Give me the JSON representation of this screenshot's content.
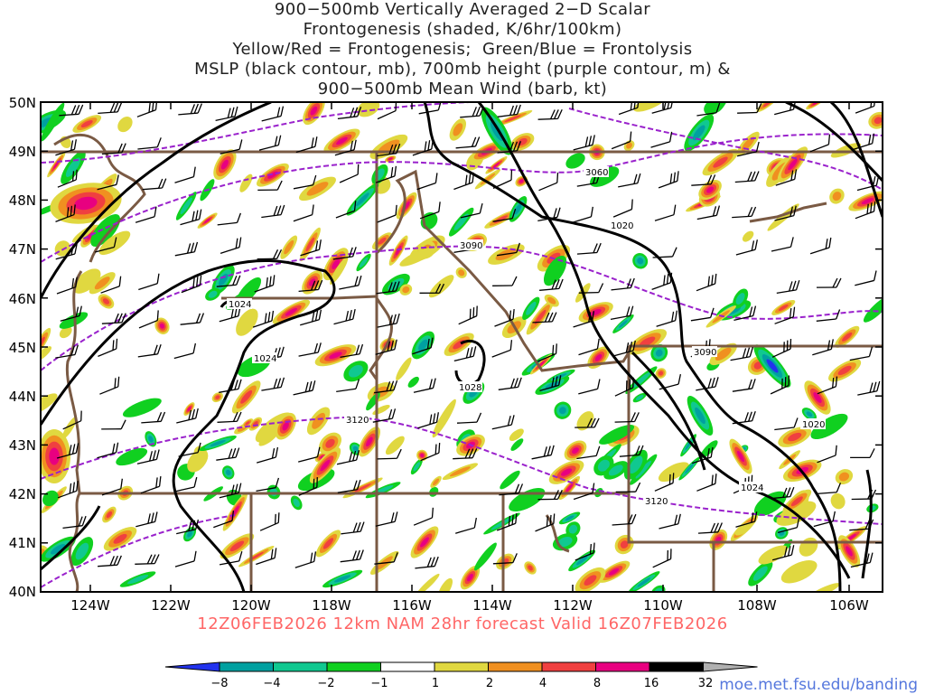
{
  "title_lines": [
    "900−500mb Vertically Averaged 2−D Scalar",
    "Frontogenesis (shaded, K/6hr/100km)",
    "Yellow/Red = Frontogenesis;  Green/Blue = Frontolysis",
    "MSLP (black contour, mb), 700mb height (purple contour, m) &",
    "900−500mb Mean Wind (barb, kt)"
  ],
  "lat_labels": [
    "50N",
    "49N",
    "48N",
    "47N",
    "46N",
    "45N",
    "44N",
    "43N",
    "42N",
    "41N",
    "40N"
  ],
  "lon_labels": [
    "124W",
    "122W",
    "120W",
    "118W",
    "116W",
    "114W",
    "112W",
    "110W",
    "108W",
    "106W"
  ],
  "mslp_labels": [
    "1024",
    "1024",
    "1028",
    "1020",
    "1020",
    "1024"
  ],
  "height_labels": [
    "3060",
    "3090",
    "3090",
    "3120",
    "3120"
  ],
  "colorbar": {
    "ticks": [
      "−8",
      "−4",
      "−2",
      "−1",
      "1",
      "2",
      "4",
      "8",
      "16",
      "32"
    ],
    "colors": [
      "#2233ee",
      "#00a0a0",
      "#10c890",
      "#10d020",
      "#ffffff",
      "#e0d840",
      "#f09020",
      "#f04040",
      "#e80080",
      "#000000",
      "#b0b0b0"
    ]
  },
  "footer": "12Z06FEB2026 12km NAM 28hr forecast Valid 16Z07FEB2026",
  "url": "moe.met.fsu.edu/banding"
}
